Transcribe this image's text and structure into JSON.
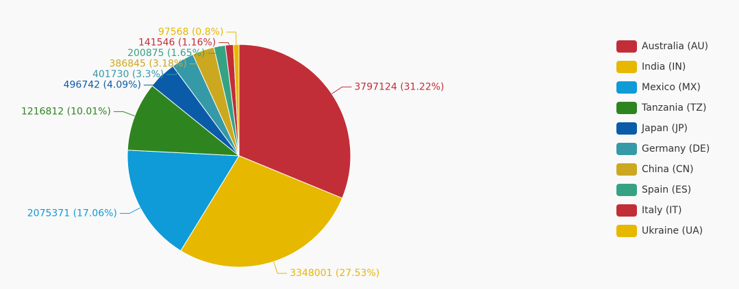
{
  "chart_data": {
    "type": "pie",
    "categories": [
      "Australia (AU)",
      "India (IN)",
      "Mexico (MX)",
      "Tanzania (TZ)",
      "Japan (JP)",
      "Germany (DE)",
      "China (CN)",
      "Spain (ES)",
      "Italy (IT)",
      "Ukraine (UA)"
    ],
    "values": [
      3797124,
      3348001,
      2075371,
      1216812,
      496742,
      401730,
      386845,
      200875,
      141546,
      97568
    ],
    "value_labels": [
      "3797124 (31.22%)",
      "3348001 (27.53%)",
      "2075371 (17.06%)",
      "1216812 (10.01%)",
      "496742 (4.09%)",
      "401730 (3.3%)",
      "386845 (3.18%)",
      "200875 (1.65%)",
      "141546 (1.16%)",
      "97568 (0.8%)"
    ],
    "colors": [
      "#c22e37",
      "#e6b800",
      "#0e9bd8",
      "#2e8520",
      "#0a5ca8",
      "#3599a8",
      "#cca820",
      "#36a284",
      "#c22e37",
      "#e6b800"
    ],
    "legend": "right"
  }
}
